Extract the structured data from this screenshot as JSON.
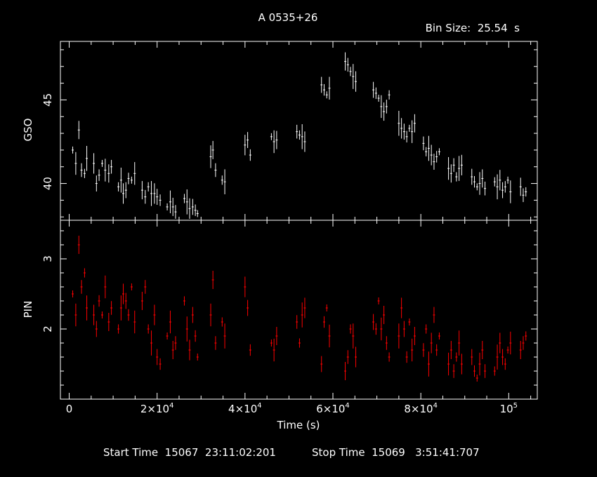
{
  "title": "A 0535+26",
  "bin_size_label": "Bin Size:  25.54  s",
  "footer": {
    "start_label": "Start Time  15067  23:11:02:201",
    "stop_label": "Stop Time  15069   3:51:41:707"
  },
  "colors": {
    "background": "#000000",
    "axes": "#ffffff",
    "gso_series": "#ffffff",
    "pin_series": "#ff0000"
  },
  "chart_data": [
    {
      "type": "scatter",
      "panel": "top",
      "ylabel": "GSO",
      "xlim": [
        -2000,
        106500
      ],
      "ylim": [
        37.8,
        48.5
      ],
      "yticks": [
        40,
        45
      ],
      "series": [
        {
          "error_bars": true,
          "points": [
            [
              800,
              42.0
            ],
            [
              1500,
              41.2
            ],
            [
              2200,
              43.2
            ],
            [
              2800,
              40.8
            ],
            [
              3500,
              40.6
            ],
            [
              4000,
              41.5
            ],
            [
              5600,
              41.2
            ],
            [
              6200,
              40.0
            ],
            [
              6800,
              40.5
            ],
            [
              7500,
              41.2
            ],
            [
              8200,
              40.8
            ],
            [
              9000,
              40.6
            ],
            [
              9600,
              41.0
            ],
            [
              11200,
              39.8
            ],
            [
              11800,
              40.2
            ],
            [
              12300,
              39.4
            ],
            [
              12900,
              39.6
            ],
            [
              13500,
              40.3
            ],
            [
              14200,
              40.2
            ],
            [
              14900,
              40.6
            ],
            [
              16600,
              39.6
            ],
            [
              17300,
              39.2
            ],
            [
              18000,
              39.8
            ],
            [
              18700,
              39.4
            ],
            [
              19400,
              39.4
            ],
            [
              20000,
              39.2
            ],
            [
              20700,
              39.0
            ],
            [
              22300,
              38.6
            ],
            [
              23000,
              38.9
            ],
            [
              23600,
              38.6
            ],
            [
              24200,
              38.3
            ],
            [
              26200,
              39.1
            ],
            [
              26800,
              38.9
            ],
            [
              27400,
              38.5
            ],
            [
              28100,
              38.6
            ],
            [
              28700,
              38.4
            ],
            [
              29200,
              38.2
            ],
            [
              32200,
              41.6
            ],
            [
              32700,
              42.0
            ],
            [
              33300,
              40.8
            ],
            [
              34800,
              40.2
            ],
            [
              35400,
              40.1
            ],
            [
              40000,
              42.3
            ],
            [
              40600,
              42.6
            ],
            [
              41200,
              41.7
            ],
            [
              46000,
              42.8
            ],
            [
              46600,
              42.5
            ],
            [
              47200,
              42.6
            ],
            [
              51800,
              43.1
            ],
            [
              52400,
              42.9
            ],
            [
              53000,
              42.8
            ],
            [
              53600,
              42.5
            ],
            [
              57400,
              45.9
            ],
            [
              58000,
              45.6
            ],
            [
              58600,
              45.3
            ],
            [
              59200,
              45.7
            ],
            [
              62800,
              47.3
            ],
            [
              63400,
              47.1
            ],
            [
              64000,
              46.7
            ],
            [
              64600,
              46.4
            ],
            [
              65200,
              46.1
            ],
            [
              69200,
              45.6
            ],
            [
              69800,
              45.4
            ],
            [
              70400,
              45.1
            ],
            [
              71000,
              44.6
            ],
            [
              71600,
              44.3
            ],
            [
              72200,
              44.6
            ],
            [
              72800,
              45.3
            ],
            [
              75000,
              43.6
            ],
            [
              75600,
              43.3
            ],
            [
              76200,
              43.1
            ],
            [
              76800,
              42.8
            ],
            [
              77400,
              43.3
            ],
            [
              78000,
              43.1
            ],
            [
              78600,
              43.6
            ],
            [
              80600,
              42.4
            ],
            [
              81200,
              41.9
            ],
            [
              81800,
              42.1
            ],
            [
              82400,
              41.7
            ],
            [
              83000,
              41.3
            ],
            [
              83600,
              41.6
            ],
            [
              84200,
              41.9
            ],
            [
              86300,
              40.9
            ],
            [
              86900,
              40.6
            ],
            [
              87500,
              41.1
            ],
            [
              88100,
              40.4
            ],
            [
              88700,
              40.9
            ],
            [
              89300,
              41.1
            ],
            [
              91600,
              40.4
            ],
            [
              92200,
              40.1
            ],
            [
              92800,
              39.8
            ],
            [
              93400,
              40.0
            ],
            [
              94000,
              40.3
            ],
            [
              94600,
              39.7
            ],
            [
              96800,
              40.1
            ],
            [
              97400,
              39.8
            ],
            [
              98000,
              40.2
            ],
            [
              98600,
              39.6
            ],
            [
              99200,
              39.8
            ],
            [
              99800,
              40.2
            ],
            [
              100400,
              39.5
            ],
            [
              102700,
              39.8
            ],
            [
              103300,
              39.3
            ],
            [
              103900,
              39.5
            ]
          ]
        }
      ]
    },
    {
      "type": "scatter",
      "panel": "bottom",
      "ylabel": "PIN",
      "xlabel": "Time (s)",
      "xlim": [
        -2000,
        106500
      ],
      "ylim": [
        1.0,
        3.55
      ],
      "yticks": [
        2,
        3
      ],
      "xticks": [
        0,
        20000,
        40000,
        60000,
        80000,
        100000
      ],
      "xtick_labels": [
        {
          "base": "0",
          "exp": ""
        },
        {
          "base": "2×10",
          "exp": "4"
        },
        {
          "base": "4×10",
          "exp": "4"
        },
        {
          "base": "6×10",
          "exp": "4"
        },
        {
          "base": "8×10",
          "exp": "4"
        },
        {
          "base": "10",
          "exp": "5"
        }
      ],
      "series": [
        {
          "error_bars": true,
          "points": [
            [
              800,
              2.5
            ],
            [
              1500,
              2.2
            ],
            [
              2200,
              3.2
            ],
            [
              2800,
              2.6
            ],
            [
              3500,
              2.8
            ],
            [
              4000,
              2.3
            ],
            [
              5600,
              2.2
            ],
            [
              6200,
              2.0
            ],
            [
              6800,
              2.4
            ],
            [
              7500,
              2.2
            ],
            [
              8200,
              2.6
            ],
            [
              9000,
              2.1
            ],
            [
              9600,
              2.3
            ],
            [
              11200,
              2.0
            ],
            [
              11800,
              2.3
            ],
            [
              12300,
              2.5
            ],
            [
              12900,
              2.4
            ],
            [
              13500,
              2.2
            ],
            [
              14200,
              2.6
            ],
            [
              14900,
              2.1
            ],
            [
              16600,
              2.4
            ],
            [
              17300,
              2.6
            ],
            [
              18000,
              2.0
            ],
            [
              18700,
              1.8
            ],
            [
              19400,
              2.2
            ],
            [
              20000,
              1.6
            ],
            [
              20700,
              1.5
            ],
            [
              22300,
              1.9
            ],
            [
              23000,
              2.1
            ],
            [
              23600,
              1.7
            ],
            [
              24200,
              1.8
            ],
            [
              26200,
              2.4
            ],
            [
              26800,
              2.0
            ],
            [
              27400,
              1.7
            ],
            [
              28100,
              2.2
            ],
            [
              28700,
              1.9
            ],
            [
              29200,
              1.6
            ],
            [
              32200,
              2.2
            ],
            [
              32700,
              2.7
            ],
            [
              33300,
              1.8
            ],
            [
              34800,
              2.1
            ],
            [
              35400,
              1.9
            ],
            [
              40000,
              2.6
            ],
            [
              40600,
              2.3
            ],
            [
              41200,
              1.7
            ],
            [
              46000,
              1.8
            ],
            [
              46600,
              1.7
            ],
            [
              47200,
              1.9
            ],
            [
              51800,
              2.1
            ],
            [
              52400,
              1.8
            ],
            [
              53000,
              2.2
            ],
            [
              53600,
              2.3
            ],
            [
              57400,
              1.5
            ],
            [
              58000,
              2.1
            ],
            [
              58600,
              2.3
            ],
            [
              59200,
              1.9
            ],
            [
              62800,
              1.4
            ],
            [
              63400,
              1.6
            ],
            [
              64000,
              2.0
            ],
            [
              64600,
              1.9
            ],
            [
              65200,
              1.6
            ],
            [
              69200,
              2.1
            ],
            [
              69800,
              2.0
            ],
            [
              70400,
              2.4
            ],
            [
              71000,
              2.0
            ],
            [
              71600,
              2.2
            ],
            [
              72200,
              1.8
            ],
            [
              72800,
              1.6
            ],
            [
              75000,
              1.9
            ],
            [
              75600,
              2.3
            ],
            [
              76200,
              2.0
            ],
            [
              76800,
              1.6
            ],
            [
              77400,
              2.1
            ],
            [
              78000,
              1.7
            ],
            [
              78600,
              1.9
            ],
            [
              80600,
              1.7
            ],
            [
              81200,
              2.0
            ],
            [
              81800,
              1.5
            ],
            [
              82400,
              1.8
            ],
            [
              83000,
              2.2
            ],
            [
              83600,
              1.7
            ],
            [
              84200,
              1.9
            ],
            [
              86300,
              1.5
            ],
            [
              86900,
              1.7
            ],
            [
              87500,
              1.4
            ],
            [
              88100,
              1.6
            ],
            [
              88700,
              1.8
            ],
            [
              89300,
              1.5
            ],
            [
              91600,
              1.6
            ],
            [
              92200,
              1.4
            ],
            [
              92800,
              1.3
            ],
            [
              93400,
              1.5
            ],
            [
              94000,
              1.7
            ],
            [
              94600,
              1.4
            ],
            [
              96800,
              1.4
            ],
            [
              97400,
              1.6
            ],
            [
              98000,
              1.8
            ],
            [
              98600,
              1.6
            ],
            [
              99200,
              1.5
            ],
            [
              99800,
              1.7
            ],
            [
              100400,
              1.8
            ],
            [
              102700,
              1.7
            ],
            [
              103300,
              1.8
            ],
            [
              103900,
              1.9
            ]
          ]
        }
      ]
    }
  ]
}
